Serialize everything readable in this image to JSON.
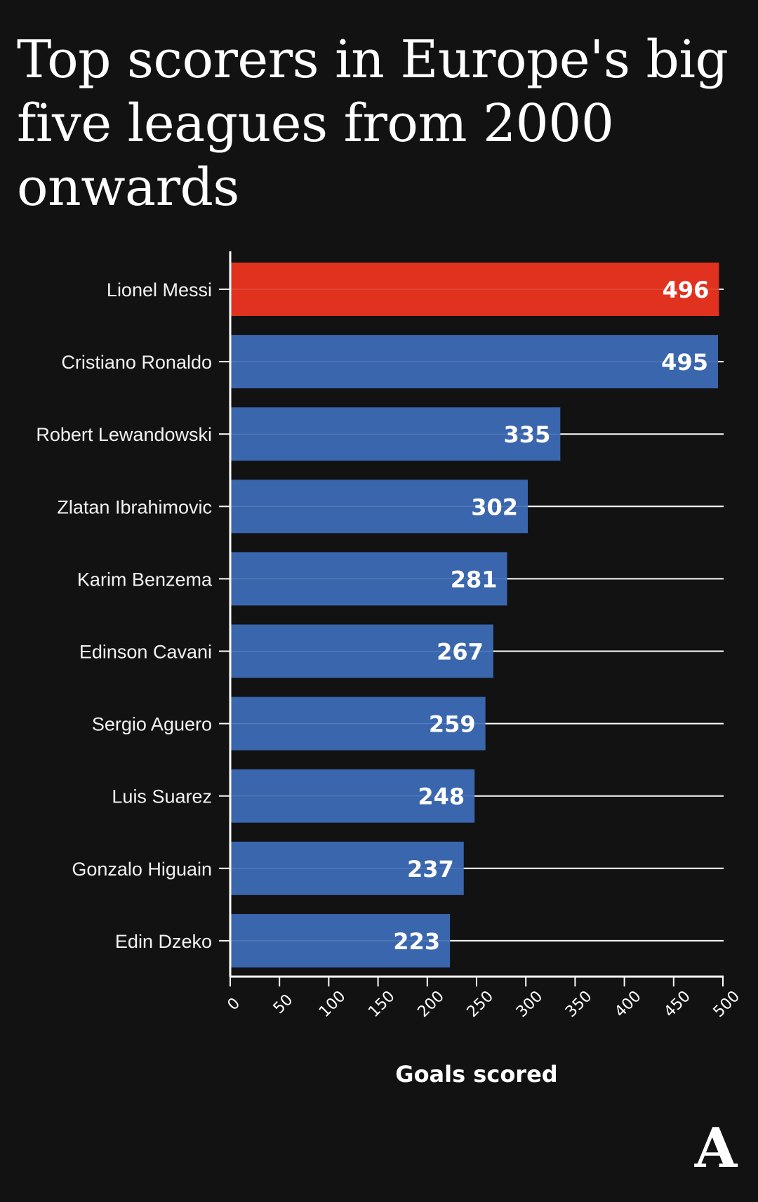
{
  "chart_data": {
    "type": "bar",
    "orientation": "horizontal",
    "title": "Top scorers in Europe's big five leagues from 2000 onwards",
    "xlabel": "Goals scored",
    "ylabel": "",
    "categories": [
      "Lionel Messi",
      "Cristiano Ronaldo",
      "Robert Lewandowski",
      "Zlatan Ibrahimovic",
      "Karim Benzema",
      "Edinson Cavani",
      "Sergio Aguero",
      "Luis Suarez",
      "Gonzalo Higuain",
      "Edin Dzeko"
    ],
    "values": [
      496,
      495,
      335,
      302,
      281,
      267,
      259,
      248,
      237,
      223
    ],
    "xlim": [
      0,
      500
    ],
    "xticks": [
      0,
      50,
      100,
      150,
      200,
      250,
      300,
      350,
      400,
      450,
      500
    ],
    "grid": "horizontal guide line per bar",
    "colors": {
      "background": "#121212",
      "highlight_bar": "#e0321f",
      "bar": "#3a66ad",
      "text": "#ffffff",
      "axis": "#ffffff"
    },
    "highlight_index": 0
  },
  "logo": {
    "text": "A"
  }
}
